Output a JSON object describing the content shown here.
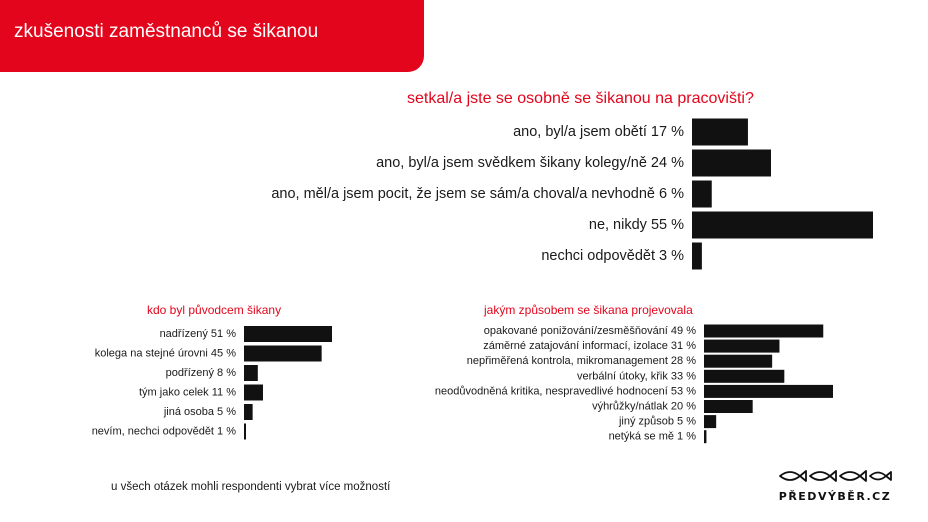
{
  "header": {
    "title": "zkušenosti zaměstnanců se šikanou"
  },
  "chart_data": [
    {
      "type": "bar",
      "orientation": "horizontal",
      "title": "setkal/a jste se osobně se šikanou na pracovišti?",
      "unit": "%",
      "categories": [
        "ano, byl/a jsem obětí",
        "ano, byl/a jsem svědkem šikany kolegy/ně",
        "ano, měl/a jsem pocit, že jsem se sám/a choval/a nevhodně",
        "ne, nikdy",
        "nechci odpovědět"
      ],
      "values": [
        17,
        24,
        6,
        55,
        3
      ],
      "color": "#111111"
    },
    {
      "type": "bar",
      "orientation": "horizontal",
      "title": "kdo byl původcem šikany",
      "unit": "%",
      "categories": [
        "nadřízený",
        "kolega na stejné úrovni",
        "podřízený",
        "tým jako celek",
        "jiná osoba",
        "nevím, nechci odpovědět"
      ],
      "values": [
        51,
        45,
        8,
        11,
        5,
        1
      ],
      "color": "#111111"
    },
    {
      "type": "bar",
      "orientation": "horizontal",
      "title": "jakým způsobem se šikana projevovala",
      "unit": "%",
      "categories": [
        "opakované ponižování/zesměšňování",
        "záměrné zatajování informací, izolace",
        "nepřiměřená kontrola, mikromanagement",
        "verbální útoky, křik",
        "neodůvodněná kritika, nespravedlivé hodnocení",
        "výhrůžky/nátlak",
        "jiný způsob",
        "netýká se mě"
      ],
      "values": [
        49,
        31,
        28,
        33,
        53,
        20,
        5,
        1
      ],
      "color": "#111111"
    }
  ],
  "footnote": "u všech otázek mohli respondenti vybrat více možností",
  "logo": {
    "text": "PŘEDVÝBĚR.CZ",
    "icon": "fish-icon"
  },
  "colors": {
    "accent": "#e3051b",
    "bar": "#111111"
  }
}
